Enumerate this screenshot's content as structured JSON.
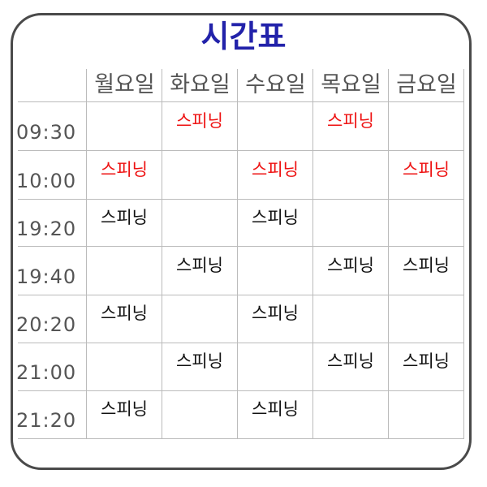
{
  "title": "시간표",
  "days": [
    "월요일",
    "화요일",
    "수요일",
    "목요일",
    "금요일"
  ],
  "rows": [
    {
      "time": "09:30",
      "cells": [
        {
          "text": "",
          "color": ""
        },
        {
          "text": "스피닝",
          "color": "red"
        },
        {
          "text": "",
          "color": ""
        },
        {
          "text": "스피닝",
          "color": "red"
        },
        {
          "text": "",
          "color": ""
        }
      ]
    },
    {
      "time": "10:00",
      "cells": [
        {
          "text": "스피닝",
          "color": "red"
        },
        {
          "text": "",
          "color": ""
        },
        {
          "text": "스피닝",
          "color": "red"
        },
        {
          "text": "",
          "color": ""
        },
        {
          "text": "스피닝",
          "color": "red"
        }
      ]
    },
    {
      "time": "19:20",
      "cells": [
        {
          "text": "스피닝",
          "color": "black"
        },
        {
          "text": "",
          "color": ""
        },
        {
          "text": "스피닝",
          "color": "black"
        },
        {
          "text": "",
          "color": ""
        },
        {
          "text": "",
          "color": ""
        }
      ]
    },
    {
      "time": "19:40",
      "cells": [
        {
          "text": "",
          "color": ""
        },
        {
          "text": "스피닝",
          "color": "black"
        },
        {
          "text": "",
          "color": ""
        },
        {
          "text": "스피닝",
          "color": "black"
        },
        {
          "text": "스피닝",
          "color": "black"
        }
      ]
    },
    {
      "time": "20:20",
      "cells": [
        {
          "text": "스피닝",
          "color": "black"
        },
        {
          "text": "",
          "color": ""
        },
        {
          "text": "스피닝",
          "color": "black"
        },
        {
          "text": "",
          "color": ""
        },
        {
          "text": "",
          "color": ""
        }
      ]
    },
    {
      "time": "21:00",
      "cells": [
        {
          "text": "",
          "color": ""
        },
        {
          "text": "스피닝",
          "color": "black"
        },
        {
          "text": "",
          "color": ""
        },
        {
          "text": "스피닝",
          "color": "black"
        },
        {
          "text": "스피닝",
          "color": "black"
        }
      ]
    },
    {
      "time": "21:20",
      "cells": [
        {
          "text": "스피닝",
          "color": "black"
        },
        {
          "text": "",
          "color": ""
        },
        {
          "text": "스피닝",
          "color": "black"
        },
        {
          "text": "",
          "color": ""
        },
        {
          "text": "",
          "color": ""
        }
      ]
    }
  ]
}
